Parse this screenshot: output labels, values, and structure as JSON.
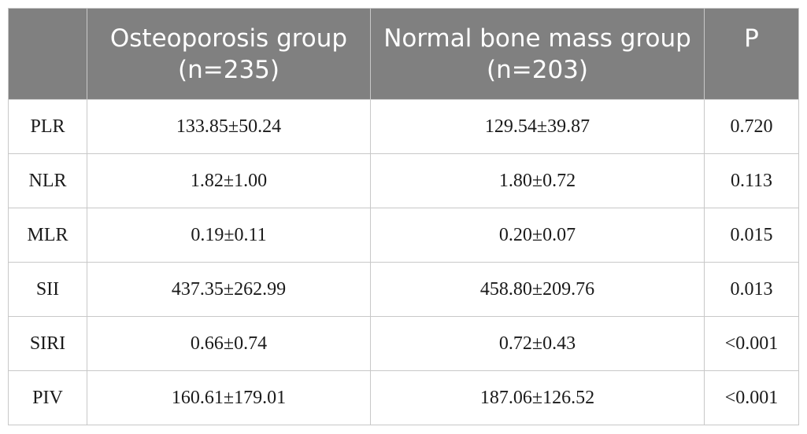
{
  "table": {
    "headers": [
      "",
      "Osteoporosis group (n=235)",
      "Normal bone mass group (n=203)",
      "P"
    ],
    "rows": [
      [
        "PLR",
        "133.85±50.24",
        "129.54±39.87",
        "0.720"
      ],
      [
        "NLR",
        "1.82±1.00",
        "1.80±0.72",
        "0.113"
      ],
      [
        "MLR",
        "0.19±0.11",
        "0.20±0.07",
        "0.015"
      ],
      [
        "SII",
        "437.35±262.99",
        "458.80±209.76",
        "0.013"
      ],
      [
        "SIRI",
        "0.66±0.74",
        "0.72±0.43",
        "<0.001"
      ],
      [
        "PIV",
        "160.61±179.01",
        "187.06±126.52",
        "<0.001"
      ]
    ]
  }
}
